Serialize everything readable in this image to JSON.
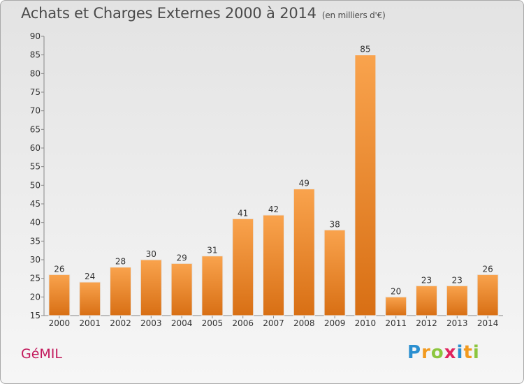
{
  "chart_data": {
    "type": "bar",
    "title": "Achats et Charges Externes 2000 à 2014",
    "subtitle": "(en milliers d'€)",
    "categories": [
      "2000",
      "2001",
      "2002",
      "2003",
      "2004",
      "2005",
      "2006",
      "2007",
      "2008",
      "2009",
      "2010",
      "2011",
      "2012",
      "2013",
      "2014"
    ],
    "values": [
      26,
      24,
      28,
      30,
      29,
      31,
      41,
      42,
      49,
      38,
      85,
      20,
      23,
      23,
      26
    ],
    "ylim": [
      15,
      90
    ],
    "yticks": [
      15,
      20,
      25,
      30,
      35,
      40,
      45,
      50,
      55,
      60,
      65,
      70,
      75,
      80,
      85,
      90
    ],
    "grid": false,
    "bar_color": "#f0913a"
  },
  "footer": {
    "place": "GéMIL",
    "logo_letters": [
      "P",
      "r",
      "o",
      "x",
      "i",
      "t",
      "i"
    ],
    "logo_colors": [
      "#2b8fd0",
      "#f29a1f",
      "#8cc63f",
      "#e0245e",
      "#2b8fd0",
      "#f29a1f",
      "#8cc63f"
    ]
  }
}
